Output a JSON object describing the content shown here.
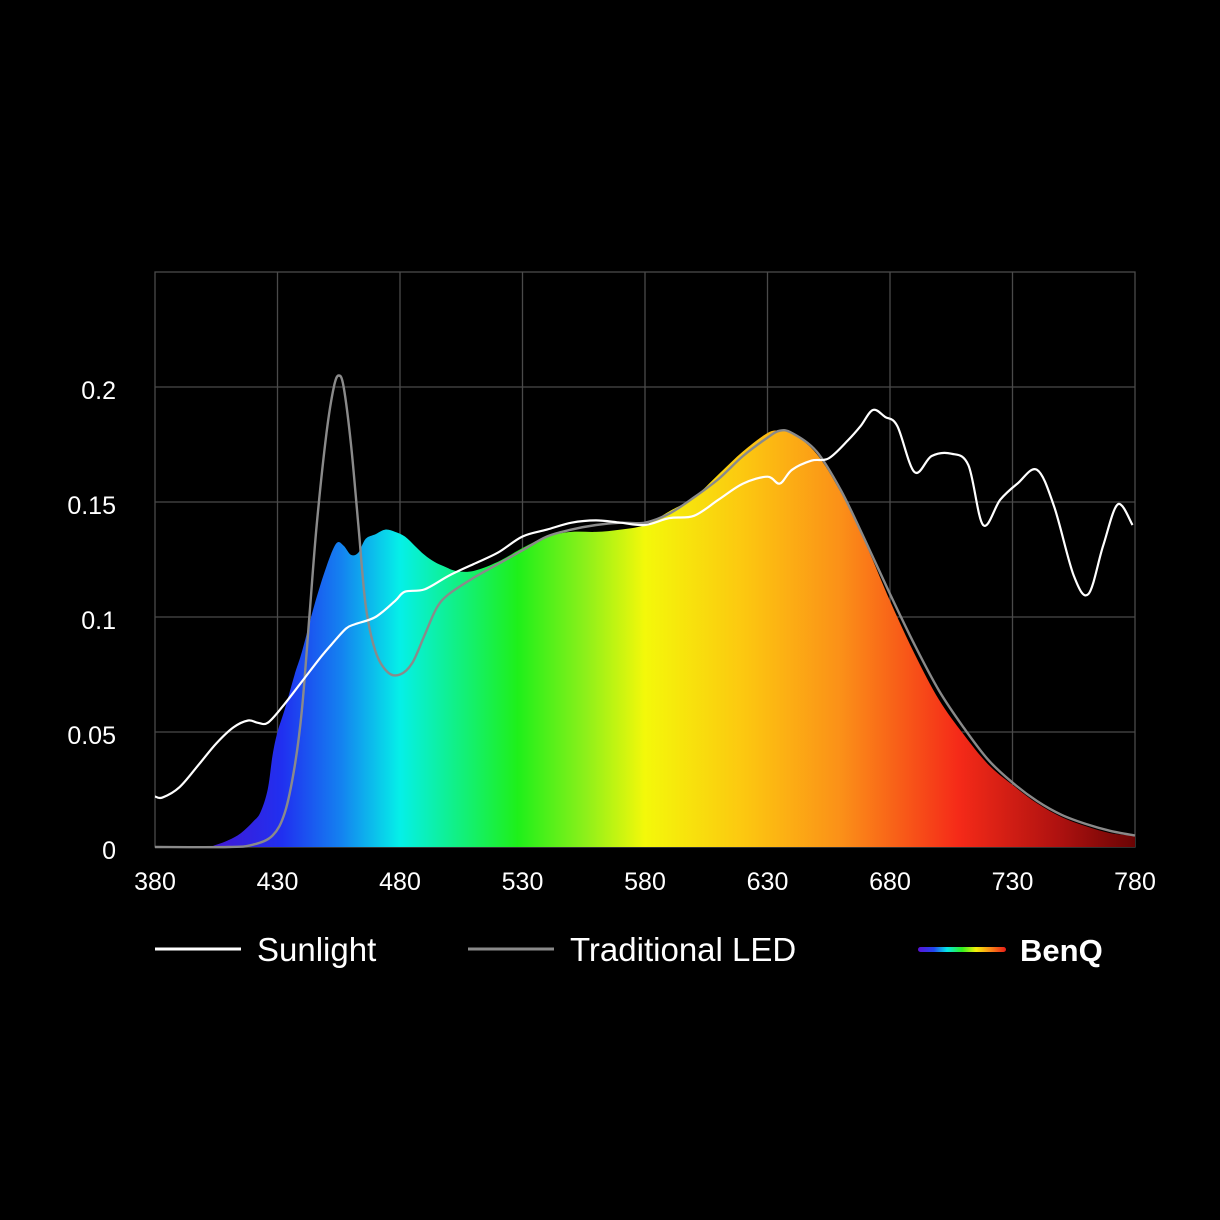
{
  "chart_data": {
    "type": "area",
    "title": "",
    "xlabel": "",
    "ylabel": "",
    "xlim": [
      380,
      780
    ],
    "ylim": [
      0,
      0.25
    ],
    "x_ticks": [
      380,
      430,
      480,
      530,
      580,
      630,
      680,
      730,
      780
    ],
    "x_tick_labels": [
      "380",
      "430",
      "480",
      "530",
      "580",
      "630",
      "680",
      "730",
      "780"
    ],
    "y_ticks": [
      0,
      0.05,
      0.1,
      0.15,
      0.2
    ],
    "y_tick_labels": [
      "0",
      "0.05",
      "0.1",
      "0.15",
      "0.2"
    ],
    "grid": true,
    "legend_position": "bottom",
    "series": [
      {
        "name": "Sunlight",
        "kind": "line",
        "color": "#ffffff",
        "x": [
          380,
          383,
          390,
          398,
          405,
          412,
          418,
          422,
          426,
          432,
          440,
          448,
          452,
          458,
          462,
          470,
          478,
          482,
          490,
          500,
          510,
          520,
          530,
          540,
          550,
          560,
          570,
          580,
          590,
          600,
          610,
          620,
          630,
          635,
          640,
          648,
          655,
          663,
          668,
          673,
          678,
          683,
          690,
          697,
          705,
          712,
          718,
          725,
          732,
          740,
          747,
          755,
          761,
          767,
          773,
          779
        ],
        "y": [
          0.022,
          0.0215,
          0.026,
          0.036,
          0.045,
          0.052,
          0.055,
          0.054,
          0.054,
          0.061,
          0.072,
          0.083,
          0.088,
          0.095,
          0.097,
          0.1,
          0.107,
          0.111,
          0.112,
          0.118,
          0.123,
          0.128,
          0.135,
          0.138,
          0.141,
          0.142,
          0.141,
          0.14,
          0.143,
          0.144,
          0.151,
          0.158,
          0.161,
          0.158,
          0.164,
          0.168,
          0.169,
          0.177,
          0.183,
          0.19,
          0.187,
          0.183,
          0.163,
          0.17,
          0.171,
          0.166,
          0.14,
          0.151,
          0.158,
          0.164,
          0.148,
          0.118,
          0.11,
          0.131,
          0.149,
          0.14
        ]
      },
      {
        "name": "Traditional LED",
        "kind": "line",
        "color": "#8a8a8a",
        "x": [
          380,
          410,
          420,
          428,
          433,
          437,
          440,
          443,
          446,
          450,
          453,
          455,
          457,
          460,
          463,
          466,
          470,
          475,
          480,
          485,
          490,
          495,
          500,
          510,
          520,
          530,
          540,
          550,
          560,
          570,
          580,
          590,
          600,
          610,
          620,
          630,
          635,
          640,
          650,
          660,
          670,
          680,
          690,
          700,
          710,
          720,
          730,
          740,
          750,
          760,
          770,
          780
        ],
        "y": [
          0,
          0,
          0.001,
          0.005,
          0.015,
          0.035,
          0.06,
          0.1,
          0.14,
          0.18,
          0.2,
          0.205,
          0.2,
          0.175,
          0.14,
          0.105,
          0.085,
          0.076,
          0.075,
          0.08,
          0.092,
          0.104,
          0.11,
          0.117,
          0.123,
          0.129,
          0.135,
          0.138,
          0.14,
          0.141,
          0.141,
          0.145,
          0.152,
          0.16,
          0.17,
          0.178,
          0.181,
          0.18,
          0.172,
          0.155,
          0.133,
          0.11,
          0.088,
          0.068,
          0.052,
          0.038,
          0.028,
          0.02,
          0.014,
          0.01,
          0.007,
          0.005
        ]
      },
      {
        "name": "BenQ",
        "kind": "spectrum-area",
        "x": [
          380,
          400,
          405,
          410,
          415,
          420,
          423,
          426,
          428,
          430,
          433,
          437,
          440,
          445,
          450,
          454,
          457,
          460,
          463,
          466,
          470,
          474,
          478,
          482,
          486,
          490,
          494,
          498,
          503,
          510,
          520,
          530,
          540,
          550,
          560,
          570,
          580,
          590,
          600,
          610,
          620,
          630,
          635,
          640,
          650,
          660,
          670,
          680,
          690,
          700,
          710,
          720,
          730,
          740,
          750,
          760,
          770,
          780
        ],
        "y": [
          0,
          0,
          0.001,
          0.003,
          0.006,
          0.011,
          0.015,
          0.025,
          0.04,
          0.05,
          0.06,
          0.075,
          0.085,
          0.105,
          0.122,
          0.132,
          0.131,
          0.127,
          0.128,
          0.134,
          0.136,
          0.138,
          0.137,
          0.135,
          0.131,
          0.127,
          0.124,
          0.122,
          0.12,
          0.12,
          0.124,
          0.13,
          0.135,
          0.137,
          0.137,
          0.138,
          0.14,
          0.146,
          0.152,
          0.162,
          0.172,
          0.18,
          0.181,
          0.18,
          0.171,
          0.154,
          0.132,
          0.107,
          0.084,
          0.064,
          0.049,
          0.036,
          0.027,
          0.019,
          0.013,
          0.009,
          0.006,
          0.005
        ]
      }
    ],
    "legend": [
      {
        "label": "Sunlight",
        "swatch": "line",
        "color": "#ffffff"
      },
      {
        "label": "Traditional LED",
        "swatch": "line",
        "color": "#8a8a8a"
      },
      {
        "label": "BenQ",
        "swatch": "spectrum"
      }
    ],
    "colors": {
      "background": "#000000",
      "grid": "#4a4a4a",
      "axis_text": "#ffffff"
    }
  }
}
